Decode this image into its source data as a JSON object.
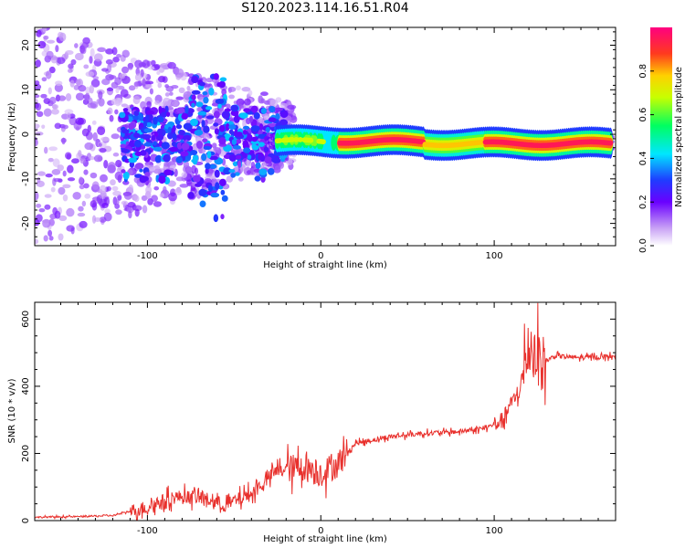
{
  "title": "S120.2023.114.16.51.R04",
  "chart_data": [
    {
      "type": "heatmap",
      "title": "S120.2023.114.16.51.R04",
      "xlabel": "Height of straight line (km)",
      "ylabel": "Frequency (Hz)",
      "xlim": [
        -165,
        170
      ],
      "ylim": [
        -25,
        24
      ],
      "x_ticks": [
        -100,
        0,
        100
      ],
      "y_ticks": [
        -20,
        -10,
        0,
        10,
        20
      ],
      "colorbar": {
        "label": "Normalized spectral amplitude",
        "range": [
          0,
          1
        ],
        "ticks": [
          0.0,
          0.2,
          0.4,
          0.6,
          0.8
        ]
      },
      "description_points": [
        {
          "x": -140,
          "y": 0,
          "amplitude": 0.15
        },
        {
          "x": -100,
          "y": 0,
          "amplitude": 0.2
        },
        {
          "x": -60,
          "y": -5,
          "amplitude": 0.2
        },
        {
          "x": -30,
          "y": 0,
          "amplitude": 0.3
        },
        {
          "x": 0,
          "y": -1.5,
          "amplitude": 0.7
        },
        {
          "x": 40,
          "y": -1.8,
          "amplitude": 0.95
        },
        {
          "x": 100,
          "y": -2,
          "amplitude": 0.8
        },
        {
          "x": 160,
          "y": -2.3,
          "amplitude": 0.85
        }
      ],
      "grid": false
    },
    {
      "type": "line",
      "xlabel": "Height of straight line (km)",
      "ylabel": "SNR (10 * v/v)",
      "xlim": [
        -165,
        170
      ],
      "ylim": [
        0,
        650
      ],
      "x_ticks": [
        -100,
        0,
        100
      ],
      "y_ticks": [
        0,
        200,
        400,
        600
      ],
      "series": [
        {
          "color": "#e8302c",
          "points": [
            [
              -165,
              10
            ],
            [
              -140,
              12
            ],
            [
              -120,
              15
            ],
            [
              -100,
              40
            ],
            [
              -85,
              70
            ],
            [
              -70,
              70
            ],
            [
              -55,
              45
            ],
            [
              -40,
              80
            ],
            [
              -25,
              150
            ],
            [
              -10,
              160
            ],
            [
              0,
              140
            ],
            [
              10,
              170
            ],
            [
              20,
              230
            ],
            [
              40,
              250
            ],
            [
              60,
              260
            ],
            [
              80,
              265
            ],
            [
              95,
              275
            ],
            [
              105,
              300
            ],
            [
              110,
              350
            ],
            [
              115,
              390
            ],
            [
              120,
              520
            ],
            [
              128,
              470
            ],
            [
              135,
              490
            ],
            [
              150,
              485
            ],
            [
              170,
              490
            ]
          ]
        }
      ],
      "grid": false
    }
  ]
}
